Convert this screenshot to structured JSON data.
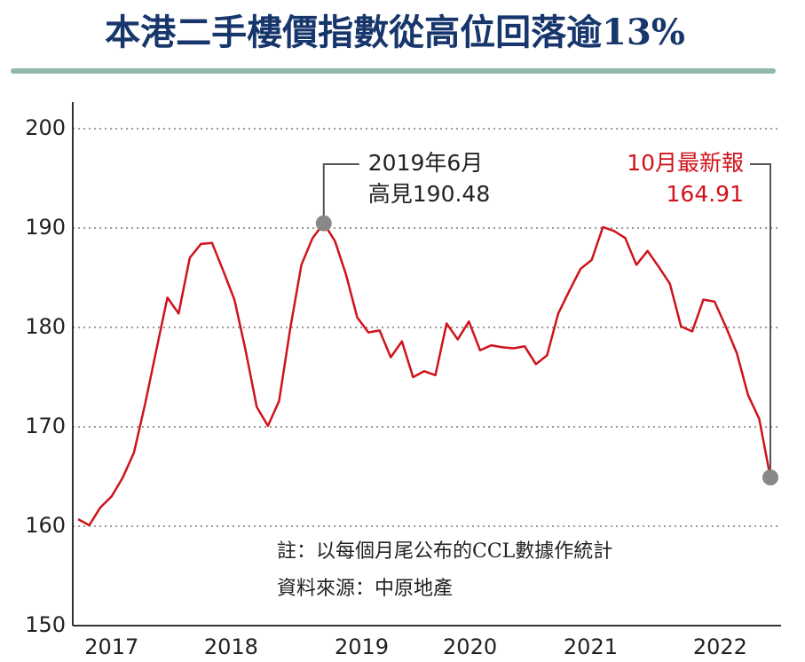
{
  "chart_data": {
    "type": "line",
    "title": "本港二手樓價指數從高位回落逾13%",
    "series": [
      {
        "color": "#d0121b",
        "values": [
          160.7,
          160.1,
          161.9,
          163.0,
          164.9,
          167.4,
          172.3,
          177.7,
          183.0,
          181.4,
          187.0,
          188.4,
          188.5,
          185.7,
          182.8,
          177.7,
          172.0,
          170.1,
          172.6,
          179.9,
          186.3,
          189.0,
          190.48,
          188.7,
          185.3,
          181.0,
          179.5,
          179.7,
          177.0,
          178.6,
          175.0,
          175.6,
          175.2,
          180.4,
          178.8,
          180.6,
          177.7,
          178.2,
          178.0,
          177.9,
          178.1,
          176.3,
          177.2,
          181.4,
          183.7,
          185.9,
          186.8,
          190.1,
          189.7,
          189.0,
          186.3,
          187.7,
          186.1,
          184.4,
          180.1,
          179.6,
          182.8,
          182.6,
          180.1,
          177.4,
          173.2,
          170.8,
          164.91
        ]
      }
    ],
    "xlim": [
      0,
      62
    ],
    "xticks": [
      {
        "value": 3,
        "label": "2017"
      },
      {
        "value": 13.7,
        "label": "2018"
      },
      {
        "value": 25.4,
        "label": "2019"
      },
      {
        "value": 35.1,
        "label": "2020"
      },
      {
        "value": 45.9,
        "label": "2021"
      },
      {
        "value": 57.5,
        "label": "2022"
      }
    ],
    "ylim": [
      150,
      200
    ],
    "yticks": [
      150,
      160,
      170,
      180,
      190,
      200
    ],
    "grid": true,
    "annotations": [
      {
        "index": 22,
        "lines": [
          "2019年6月",
          "高見190.48"
        ],
        "color": "#222222"
      },
      {
        "index": 62,
        "lines": [
          "10月最新報",
          "164.91"
        ],
        "color": "#d0121b"
      }
    ],
    "notes": [
      "註：以每個月尾公布的CCL數據作統計",
      "資料來源：中原地產"
    ]
  }
}
